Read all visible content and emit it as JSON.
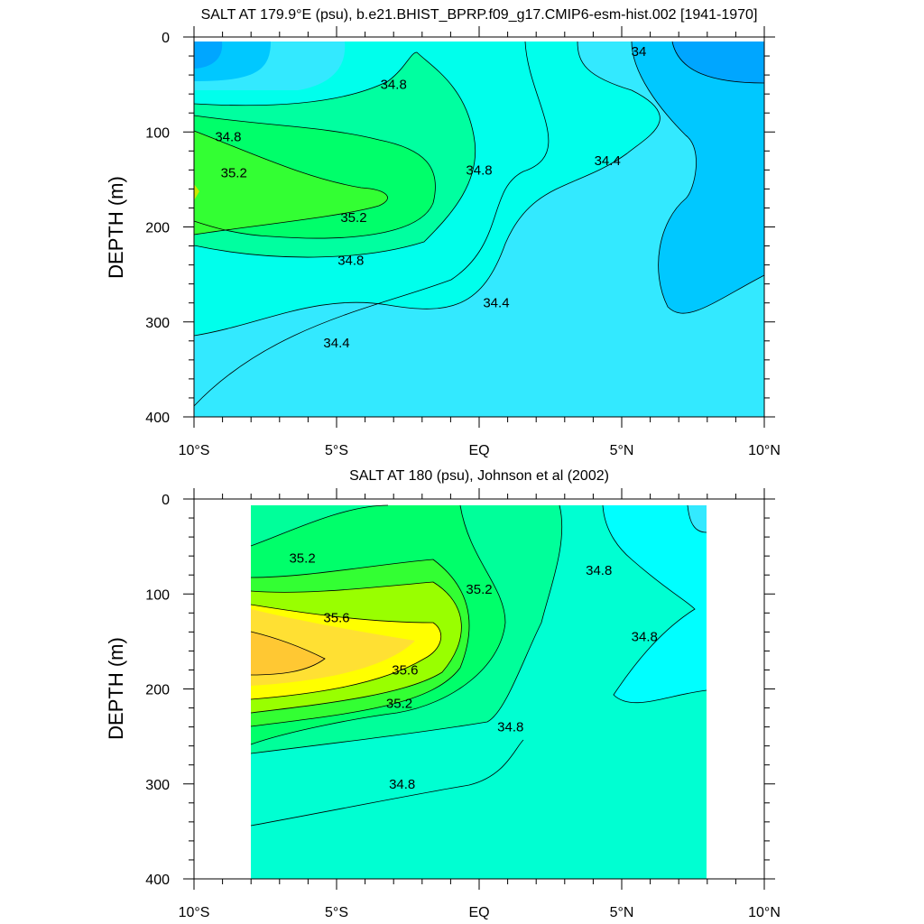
{
  "chart_data": [
    {
      "type": "contour",
      "title": "SALT AT 179.9°E (psu), b.e21.BHIST_BPRP.f09_g17.CMIP6-esm-hist.002 [1941-1970]",
      "ylabel": "DEPTH (m)",
      "ylim": [
        400,
        0
      ],
      "yticks": [
        "0",
        "100",
        "200",
        "300",
        "400"
      ],
      "xlim": [
        -10,
        10
      ],
      "xticks": [
        "10°S",
        "5°S",
        "EQ",
        "5°N",
        "10°N"
      ],
      "data_lon_range": [
        -10,
        10
      ],
      "contour_interval": 0.2,
      "contour_labels": [
        {
          "text": "34",
          "lon": 5.6,
          "depth": 15
        },
        {
          "text": "34.8",
          "lon": -3.0,
          "depth": 50
        },
        {
          "text": "34.8",
          "lon": -8.8,
          "depth": 105
        },
        {
          "text": "35.2",
          "lon": -8.6,
          "depth": 143
        },
        {
          "text": "35.2",
          "lon": -4.4,
          "depth": 190
        },
        {
          "text": "34.8",
          "lon": 0.0,
          "depth": 140
        },
        {
          "text": "34.4",
          "lon": 4.5,
          "depth": 130
        },
        {
          "text": "34.8",
          "lon": -4.5,
          "depth": 235
        },
        {
          "text": "34.4",
          "lon": 0.6,
          "depth": 280
        },
        {
          "text": "34.4",
          "lon": -5.0,
          "depth": 322
        }
      ]
    },
    {
      "type": "contour",
      "title": "SALT AT 180 (psu), Johnson et al (2002)",
      "ylabel": "DEPTH (m)",
      "ylim": [
        400,
        0
      ],
      "yticks": [
        "0",
        "100",
        "200",
        "300",
        "400"
      ],
      "xlim": [
        -10,
        10
      ],
      "xticks": [
        "10°S",
        "5°S",
        "EQ",
        "5°N",
        "10°N"
      ],
      "data_lon_range": [
        -8,
        8
      ],
      "contour_interval": 0.2,
      "contour_labels": [
        {
          "text": "35.2",
          "lon": -6.2,
          "depth": 62
        },
        {
          "text": "35.6",
          "lon": -5.0,
          "depth": 125
        },
        {
          "text": "35.6",
          "lon": -2.6,
          "depth": 180
        },
        {
          "text": "35.2",
          "lon": -2.8,
          "depth": 215
        },
        {
          "text": "35.2",
          "lon": 0.0,
          "depth": 95
        },
        {
          "text": "34.8",
          "lon": 1.1,
          "depth": 240
        },
        {
          "text": "34.8",
          "lon": 4.2,
          "depth": 75
        },
        {
          "text": "34.8",
          "lon": 5.8,
          "depth": 145
        },
        {
          "text": "34.8",
          "lon": -2.7,
          "depth": 300
        }
      ]
    }
  ]
}
